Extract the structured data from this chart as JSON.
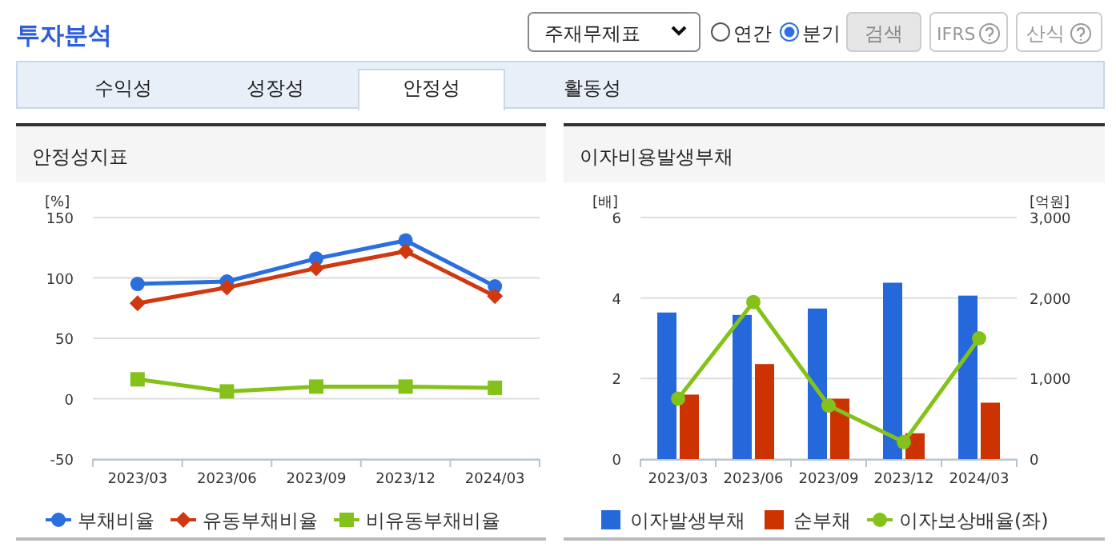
{
  "chart_data": [
    {
      "type": "other",
      "title": "투자분석",
      "annotations": [
        "주재무제표",
        "연간",
        "분기",
        "검색",
        "IFRS",
        "산식",
        "수익성",
        "성장성",
        "안정성",
        "활동성"
      ]
    },
    {
      "type": "line",
      "title": "안정성지표",
      "ylabel": "[%]",
      "categories": [
        "2023/03",
        "2023/06",
        "2023/09",
        "2023/12",
        "2024/03"
      ],
      "series": [
        {
          "name": "부채비율",
          "color": "#2b6fde",
          "marker": "circle",
          "values": [
            95,
            97,
            116,
            131,
            93
          ]
        },
        {
          "name": "유동부채비율",
          "color": "#d0380f",
          "marker": "diamond",
          "values": [
            79,
            92,
            108,
            122,
            85
          ]
        },
        {
          "name": "비유동부채비율",
          "color": "#84c21a",
          "marker": "square",
          "values": [
            16,
            6,
            10,
            10,
            9
          ]
        }
      ],
      "ylim": [
        -50,
        150
      ],
      "yticks": [
        -50,
        0,
        50,
        100,
        150
      ],
      "grid": "y",
      "legend": "bottom",
      "line_style": "solid"
    },
    {
      "type": "bar",
      "title": "이자비용발생부채",
      "ylabel": "[배]",
      "y2label": "[억원]",
      "categories": [
        "2023/03",
        "2023/06",
        "2023/09",
        "2023/12",
        "2024/03"
      ],
      "series": [
        {
          "name": "이자발생부채",
          "color": "#2468dc",
          "axis": "y2",
          "values": [
            1820,
            1790,
            1870,
            2190,
            2030
          ]
        },
        {
          "name": "순부채",
          "color": "#cc3300",
          "axis": "y2",
          "values": [
            800,
            1180,
            750,
            320,
            700
          ]
        },
        {
          "name": "이자보상배율(좌)",
          "type": "line",
          "color": "#84c21a",
          "marker": "circle",
          "values": [
            1.5,
            3.9,
            1.33,
            0.42,
            3.0
          ]
        }
      ],
      "ylim": [
        0,
        6
      ],
      "yticks": [
        0,
        2,
        4,
        6
      ],
      "y2lim": [
        0,
        3000
      ],
      "y2ticks": [
        0,
        {
          "value": 1000,
          "label": "1,000"
        },
        {
          "value": 2000,
          "label": "2,000"
        },
        {
          "value": 3000,
          "label": "3,000"
        }
      ],
      "grid": "y",
      "legend": "bottom"
    }
  ]
}
